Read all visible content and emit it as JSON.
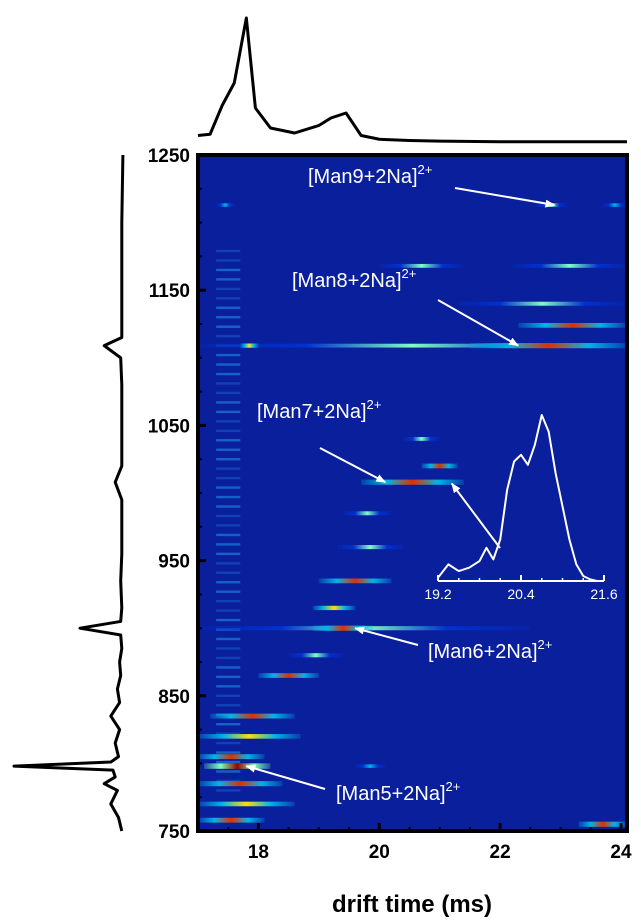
{
  "chart_data": {
    "type": "heatmap",
    "title": "",
    "xlabel": "drift time (ms)",
    "ylabel": "",
    "xlim": [
      17.0,
      24.1
    ],
    "ylim": [
      750,
      1250
    ],
    "x_ticks": [
      "18",
      "20",
      "22",
      "24"
    ],
    "y_ticks": [
      "750",
      "850",
      "950",
      "1050",
      "1150",
      "1250"
    ],
    "grid": false,
    "colormap": [
      "#00008f",
      "#0030d0",
      "#00b5e8",
      "#7fffc0",
      "#ffe000",
      "#e03000",
      "#9a0000"
    ],
    "background_color": "#0a1f9c",
    "annotations": [
      {
        "label": "[Man9+2Na]",
        "charge": "2+",
        "x": 22.9,
        "y": 1213
      },
      {
        "label": "[Man8+2Na]",
        "charge": "2+",
        "x": 22.3,
        "y": 1109
      },
      {
        "label": "[Man7+2Na]",
        "charge": "2+",
        "x": 20.1,
        "y": 1008
      },
      {
        "label": "[Man6+2Na]",
        "charge": "2+",
        "x": 19.6,
        "y": 900
      },
      {
        "label": "[Man5+2Na]",
        "charge": "2+",
        "x": 17.8,
        "y": 798
      }
    ],
    "bands": [
      {
        "x0": 17.3,
        "x1": 17.6,
        "y": 1213,
        "i": 0.35
      },
      {
        "x0": 22.6,
        "x1": 23.1,
        "y": 1213,
        "i": 0.45
      },
      {
        "x0": 23.7,
        "x1": 24.1,
        "y": 1213,
        "i": 0.35
      },
      {
        "x0": 17.0,
        "x1": 24.1,
        "y": 1109,
        "i": 0.45
      },
      {
        "x0": 17.7,
        "x1": 18.0,
        "y": 1109,
        "i": 0.6
      },
      {
        "x0": 21.5,
        "x1": 24.1,
        "y": 1109,
        "i": 0.9
      },
      {
        "x0": 22.3,
        "x1": 24.1,
        "y": 1124,
        "i": 0.75
      },
      {
        "x0": 21.3,
        "x1": 24.1,
        "y": 1140,
        "i": 0.5
      },
      {
        "x0": 20.0,
        "x1": 21.4,
        "y": 1168,
        "i": 0.45
      },
      {
        "x0": 22.2,
        "x1": 24.1,
        "y": 1168,
        "i": 0.45
      },
      {
        "x0": 20.4,
        "x1": 21.0,
        "y": 1040,
        "i": 0.45
      },
      {
        "x0": 20.7,
        "x1": 21.3,
        "y": 1020,
        "i": 0.75
      },
      {
        "x0": 19.7,
        "x1": 21.4,
        "y": 1008,
        "i": 0.9
      },
      {
        "x0": 19.4,
        "x1": 20.2,
        "y": 985,
        "i": 0.5
      },
      {
        "x0": 19.3,
        "x1": 20.4,
        "y": 960,
        "i": 0.55
      },
      {
        "x0": 19.0,
        "x1": 20.2,
        "y": 935,
        "i": 0.75
      },
      {
        "x0": 18.9,
        "x1": 19.6,
        "y": 915,
        "i": 0.6
      },
      {
        "x0": 17.0,
        "x1": 22.5,
        "y": 900,
        "i": 0.55
      },
      {
        "x0": 18.9,
        "x1": 19.9,
        "y": 900,
        "i": 0.9
      },
      {
        "x0": 18.5,
        "x1": 19.4,
        "y": 880,
        "i": 0.55
      },
      {
        "x0": 18.0,
        "x1": 19.0,
        "y": 865,
        "i": 0.75
      },
      {
        "x0": 17.2,
        "x1": 18.6,
        "y": 835,
        "i": 0.8
      },
      {
        "x0": 17.0,
        "x1": 18.7,
        "y": 820,
        "i": 0.7
      },
      {
        "x0": 17.0,
        "x1": 18.1,
        "y": 805,
        "i": 0.8
      },
      {
        "x0": 17.1,
        "x1": 18.2,
        "y": 798,
        "i": 1.0
      },
      {
        "x0": 17.0,
        "x1": 18.4,
        "y": 785,
        "i": 0.85
      },
      {
        "x0": 17.0,
        "x1": 18.6,
        "y": 770,
        "i": 0.7
      },
      {
        "x0": 17.0,
        "x1": 18.1,
        "y": 758,
        "i": 0.8
      },
      {
        "x0": 19.6,
        "x1": 20.1,
        "y": 798,
        "i": 0.35
      },
      {
        "x0": 23.3,
        "x1": 24.1,
        "y": 755,
        "i": 0.9
      }
    ],
    "left_streak_x": [
      17.3,
      17.7
    ],
    "left_streak_y": [
      780,
      1180
    ],
    "drift_profile": {
      "x": [
        17.0,
        17.2,
        17.4,
        17.6,
        17.8,
        17.95,
        18.2,
        18.6,
        19.0,
        19.2,
        19.45,
        19.7,
        20.0,
        20.5,
        21.0,
        22.0,
        23.0,
        24.1
      ],
      "i": [
        0.06,
        0.07,
        0.3,
        0.48,
        1.0,
        0.28,
        0.12,
        0.08,
        0.14,
        0.2,
        0.24,
        0.06,
        0.03,
        0.02,
        0.015,
        0.01,
        0.01,
        0.01
      ]
    },
    "mz_profile": {
      "y": [
        750,
        760,
        770,
        780,
        785,
        790,
        795,
        798,
        801,
        805,
        815,
        825,
        835,
        845,
        855,
        865,
        875,
        885,
        895,
        900,
        905,
        915,
        935,
        955,
        975,
        995,
        1008,
        1020,
        1050,
        1080,
        1100,
        1109,
        1115,
        1140,
        1170,
        1200,
        1250
      ],
      "i": [
        0.02,
        0.05,
        0.12,
        0.06,
        0.18,
        0.08,
        0.1,
        1.0,
        0.12,
        0.05,
        0.08,
        0.04,
        0.12,
        0.04,
        0.06,
        0.03,
        0.04,
        0.02,
        0.03,
        0.4,
        0.03,
        0.02,
        0.03,
        0.02,
        0.02,
        0.02,
        0.08,
        0.02,
        0.02,
        0.02,
        0.03,
        0.18,
        0.02,
        0.02,
        0.02,
        0.02,
        0.01
      ]
    },
    "inset": {
      "x_ticks": [
        "19.2",
        "20.4",
        "21.6"
      ],
      "xlim": [
        19.2,
        21.6
      ],
      "x": [
        19.2,
        19.35,
        19.5,
        19.65,
        19.8,
        19.9,
        20.0,
        20.1,
        20.2,
        20.3,
        20.4,
        20.5,
        20.6,
        20.7,
        20.8,
        20.9,
        21.0,
        21.1,
        21.2,
        21.3,
        21.4,
        21.5,
        21.6
      ],
      "y": [
        0.02,
        0.1,
        0.06,
        0.08,
        0.12,
        0.2,
        0.13,
        0.25,
        0.55,
        0.72,
        0.76,
        0.7,
        0.82,
        1.0,
        0.9,
        0.65,
        0.45,
        0.25,
        0.1,
        0.03,
        0.01,
        0.0,
        0.0
      ]
    }
  }
}
